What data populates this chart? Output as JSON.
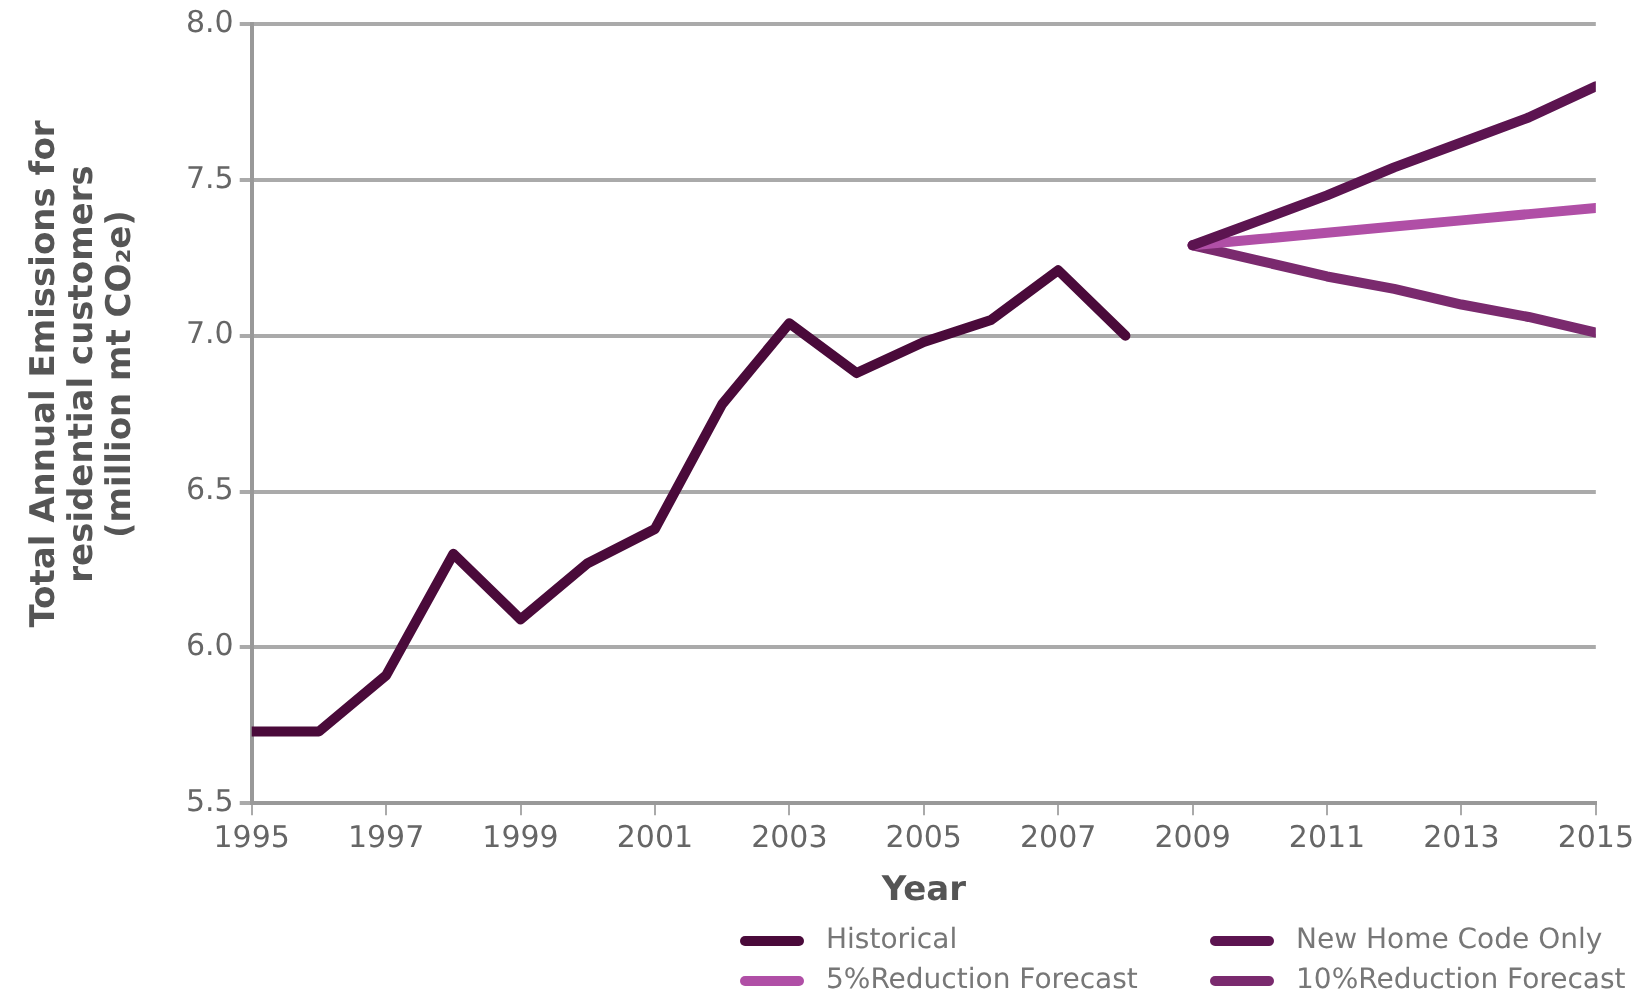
{
  "chart_data": {
    "type": "line",
    "xlabel": "Year",
    "ylabel": "Total Annual Emissions for residential customers (million mt CO₂e)",
    "xlim": [
      1995,
      2015
    ],
    "xticks": [
      1995,
      1997,
      1999,
      2001,
      2003,
      2005,
      2007,
      2009,
      2011,
      2013,
      2015
    ],
    "ylim": [
      5.5,
      8
    ],
    "yticks": [
      {
        "value": 5.5,
        "label": "5.5"
      },
      {
        "value": 6,
        "label": "6.0"
      },
      {
        "value": 6.5,
        "label": "6.5"
      },
      {
        "value": 7,
        "label": "7.0"
      },
      {
        "value": 7.5,
        "label": "7.5"
      },
      {
        "value": 8,
        "label": "8.0"
      }
    ],
    "grid": "y",
    "legend": "bottom",
    "marker": "none",
    "line_style": "solid",
    "series": [
      {
        "name": "Historical",
        "color": "#4a0a3a",
        "x": [
          1995,
          1996,
          1997,
          1998,
          1999,
          2000,
          2001,
          2002,
          2003,
          2004,
          2005,
          2006,
          2007,
          2008
        ],
        "values": [
          5.73,
          5.73,
          5.91,
          6.3,
          6.09,
          6.27,
          6.38,
          6.78,
          7.04,
          6.88,
          6.98,
          7.05,
          7.21,
          7.0
        ]
      },
      {
        "name": "New Home Code Only",
        "color": "#5c1450",
        "x": [
          2009,
          2010,
          2011,
          2012,
          2013,
          2014,
          2015
        ],
        "values": [
          7.29,
          7.37,
          7.45,
          7.54,
          7.62,
          7.7,
          7.8
        ]
      },
      {
        "name": "5%Reduction Forecast",
        "color": "#b04fa6",
        "x": [
          2009,
          2010,
          2011,
          2012,
          2013,
          2014,
          2015
        ],
        "values": [
          7.29,
          7.31,
          7.33,
          7.35,
          7.37,
          7.39,
          7.41
        ]
      },
      {
        "name": "10%Reduction Forecast",
        "color": "#7a2a6e",
        "x": [
          2009,
          2010,
          2011,
          2012,
          2013,
          2014,
          2015
        ],
        "values": [
          7.29,
          7.24,
          7.19,
          7.15,
          7.1,
          7.06,
          7.01
        ]
      }
    ]
  }
}
